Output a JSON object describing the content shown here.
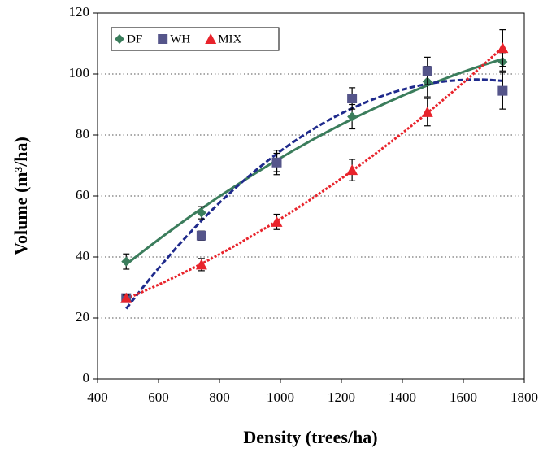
{
  "chart_data": {
    "type": "scatter",
    "x_label": "Density (trees/ha)",
    "y_label": "Volume (m³/ha)",
    "x": [
      494,
      741,
      988,
      1235,
      1482,
      1729
    ],
    "series": [
      {
        "name": "DF",
        "color": "#3b7d5c",
        "trend_color": "#3b7d5c",
        "marker": "diamond",
        "line_style": "solid",
        "values": [
          38.5,
          54.5,
          71,
          86,
          97.5,
          104
        ],
        "errors": [
          2.5,
          2,
          3,
          4,
          5,
          3
        ]
      },
      {
        "name": "WH",
        "color": "#55558a",
        "trend_color": "#1f2a8c",
        "marker": "square",
        "line_style": "dashed",
        "values": [
          26.5,
          47,
          71,
          92,
          101,
          94.5
        ],
        "errors": [
          1,
          1.5,
          4,
          3.5,
          4.5,
          6
        ]
      },
      {
        "name": "MIX",
        "color": "#e8232b",
        "trend_color": "#e8232b",
        "marker": "triangle",
        "line_style": "dotted",
        "values": [
          26.5,
          37.5,
          51.5,
          68.5,
          87.5,
          108.5
        ],
        "errors": [
          1,
          2,
          2.5,
          3.5,
          4.5,
          6
        ]
      }
    ],
    "trendline": "polynomial",
    "xlim": [
      400,
      1800
    ],
    "xticks": [
      400,
      600,
      800,
      1000,
      1200,
      1400,
      1600,
      1800
    ],
    "ylim": [
      0,
      120
    ],
    "yticks": [
      0,
      20,
      40,
      60,
      80,
      100,
      120
    ],
    "grid": true,
    "legend_position": "top-left"
  }
}
